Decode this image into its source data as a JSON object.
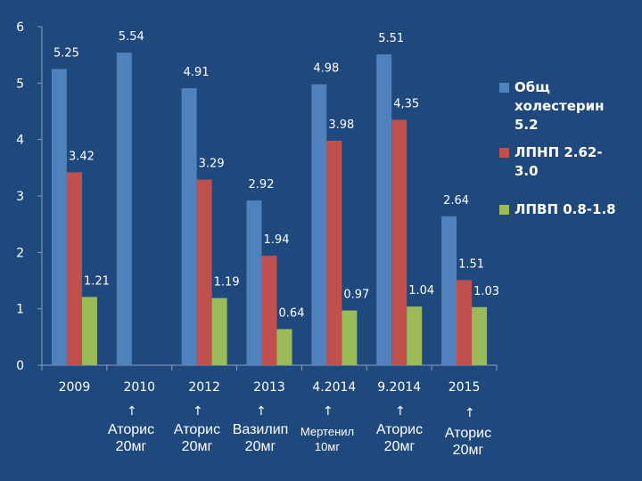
{
  "chart_data": {
    "type": "bar",
    "categories": [
      "2009",
      "2010",
      "2012",
      "2013",
      "4.2014",
      "9.2014",
      "2015"
    ],
    "series": [
      {
        "name": "Общ холестерин 5.2",
        "color": "#4f81bd",
        "values": [
          5.25,
          5.54,
          4.91,
          2.92,
          4.98,
          5.51,
          2.64
        ],
        "labels": [
          "5.25",
          "5.54",
          "4.91",
          "2.92",
          "4.98",
          "5.51",
          "2.64"
        ]
      },
      {
        "name": "ЛПНП 2.62-3.0",
        "color": "#c0504d",
        "values": [
          3.42,
          null,
          3.29,
          1.94,
          3.98,
          4.35,
          1.51
        ],
        "labels": [
          "3.42",
          "",
          "3.29",
          "1.94",
          "3.98",
          "4,35",
          "1.51"
        ]
      },
      {
        "name": "ЛПВП 0.8-1.8",
        "color": "#9bbb59",
        "values": [
          1.21,
          null,
          1.19,
          0.64,
          0.97,
          1.04,
          1.03
        ],
        "labels": [
          "1.21",
          "",
          "1.19",
          "0.64",
          "0.97",
          "1.04",
          "1.03"
        ]
      }
    ],
    "yticks": [
      "0",
      "1",
      "2",
      "3",
      "4",
      "5",
      "6"
    ],
    "ylim": [
      0,
      6
    ],
    "grid": false,
    "legend": "right",
    "xlabel": "",
    "ylabel": ""
  },
  "legend_lines": [
    [
      "Общ",
      "холестерин",
      "5.2"
    ],
    [
      "ЛПНП 2.62-",
      "3.0"
    ],
    [
      "ЛПВП 0.8-1.8"
    ]
  ],
  "annotations": [
    {
      "arrow": "↑",
      "text": "Аторис\n20мг"
    },
    {
      "arrow": "↑",
      "text": "Аторис\n20мг"
    },
    {
      "arrow": "↑",
      "text": "Вазилип\n20мг"
    },
    {
      "arrow": "↑",
      "text": "Мертенил\n10мг"
    },
    {
      "arrow": "↑",
      "text": "Аторис\n20мг"
    },
    {
      "arrow": "↑",
      "text": "Аторис\n20мг"
    }
  ]
}
